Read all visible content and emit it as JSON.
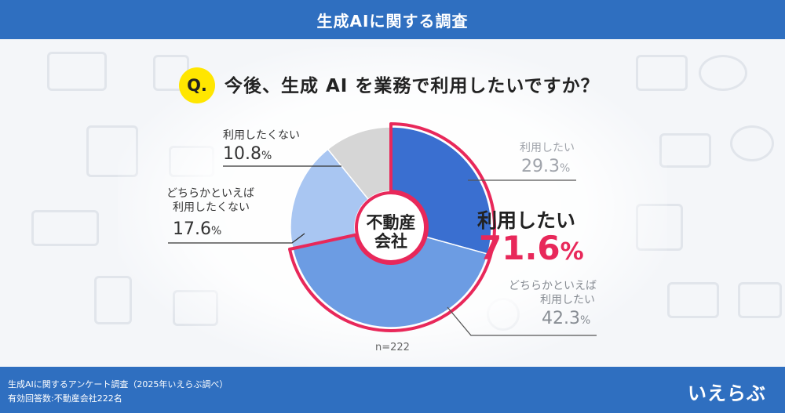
{
  "header": {
    "title": "生成AIに関する調査"
  },
  "question": {
    "badge": "Q.",
    "text": "今後、生成 AI を業務で利用したいですか？"
  },
  "center_label": {
    "line1": "不動産",
    "line2": "会社"
  },
  "sample_size": "n=222",
  "summary": {
    "label": "利用したい",
    "value": "71.6",
    "unit": "%"
  },
  "chart_data": {
    "type": "pie",
    "title": "",
    "slices": [
      {
        "label": "利用したい",
        "value": 29.3,
        "color": "#3a6fd0"
      },
      {
        "label": "どちらかといえば利用したい",
        "value": 42.3,
        "color": "#6c9ce3"
      },
      {
        "label": "どちらかといえば利用したくない",
        "value": 17.6,
        "color": "#a9c6f2"
      },
      {
        "label": "利用したくない",
        "value": 10.8,
        "color": "#d6d6d6"
      }
    ],
    "highlight": {
      "label": "利用したい",
      "value": 71.6,
      "color": "#e8285a"
    }
  },
  "labels": {
    "want": {
      "text": "利用したい",
      "pct": "29.3",
      "unit": "%"
    },
    "somewhat_want": {
      "line1": "どちらかといえば",
      "line2": "利用したい",
      "pct": "42.3",
      "unit": "%"
    },
    "somewhat_not": {
      "line1": "どちらかといえば",
      "line2": "利用したくない",
      "pct": "17.6",
      "unit": "%"
    },
    "not_want": {
      "text": "利用したくない",
      "pct": "10.8",
      "unit": "%"
    }
  },
  "footer": {
    "line1": "生成AIに関するアンケート調査（2025年いえらぶ調べ）",
    "line2": "有効回答数:不動産会社222名",
    "logo": "いえらぶ"
  }
}
